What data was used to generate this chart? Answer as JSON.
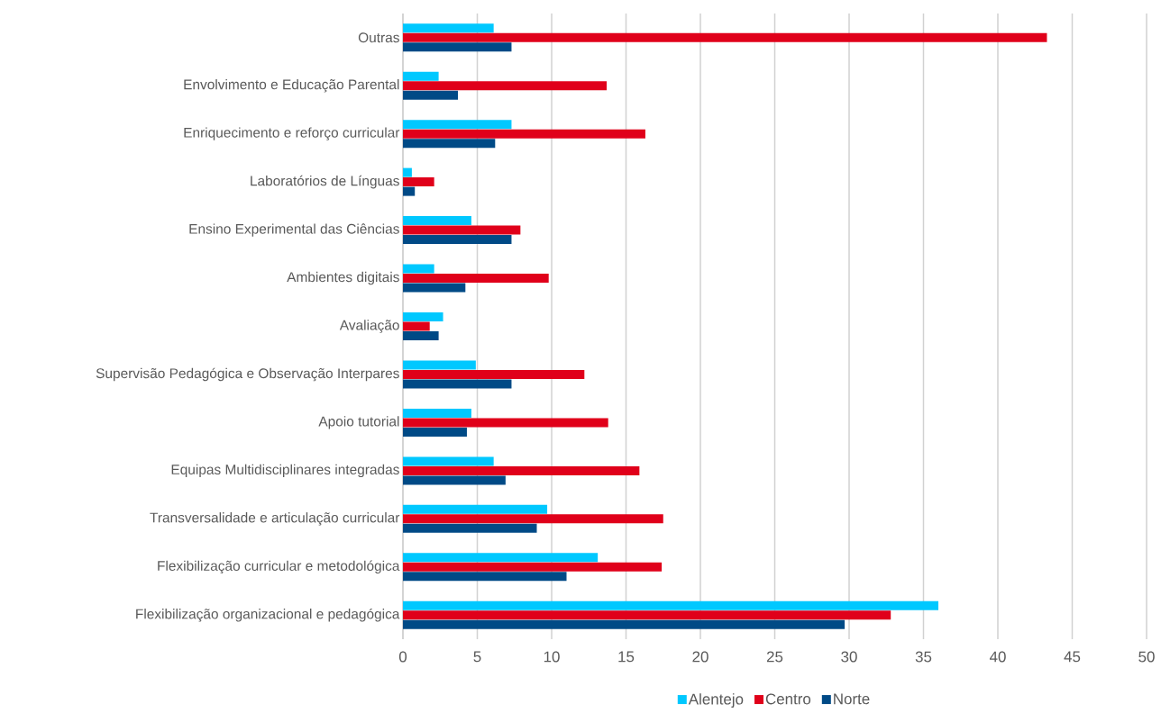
{
  "chart_data": {
    "type": "bar",
    "orientation": "horizontal",
    "categories": [
      "Outras",
      "Envolvimento e Educação Parental",
      "Enriquecimento e reforço curricular",
      "Laboratórios de Línguas",
      "Ensino Experimental das Ciências",
      "Ambientes digitais",
      "Avaliação",
      "Supervisão Pedagógica e Observação Interpares",
      "Apoio tutorial",
      "Equipas Multidisciplinares integradas",
      "Transversalidade e articulação curricular",
      "Flexibilização curricular e metodológica",
      "Flexibilização organizacional e pedagógica"
    ],
    "series": [
      {
        "name": "Alentejo",
        "color": "#00c8ff",
        "values": [
          6.1,
          2.4,
          7.3,
          0.6,
          4.6,
          2.1,
          2.7,
          4.9,
          4.6,
          6.1,
          9.7,
          13.1,
          36.0
        ]
      },
      {
        "name": "Centro",
        "color": "#e0001a",
        "values": [
          43.3,
          13.7,
          16.3,
          2.1,
          7.9,
          9.8,
          1.8,
          12.2,
          13.8,
          15.9,
          17.5,
          17.4,
          32.8
        ]
      },
      {
        "name": "Norte",
        "color": "#004a86",
        "values": [
          7.3,
          3.7,
          6.2,
          0.8,
          7.3,
          4.2,
          2.4,
          7.3,
          4.3,
          6.9,
          9.0,
          11.0,
          29.7
        ]
      }
    ],
    "xlim": [
      0,
      50
    ],
    "xticks": [
      0,
      5,
      10,
      15,
      20,
      25,
      30,
      35,
      40,
      45,
      50
    ],
    "grid": "x",
    "legend": "bottom"
  }
}
